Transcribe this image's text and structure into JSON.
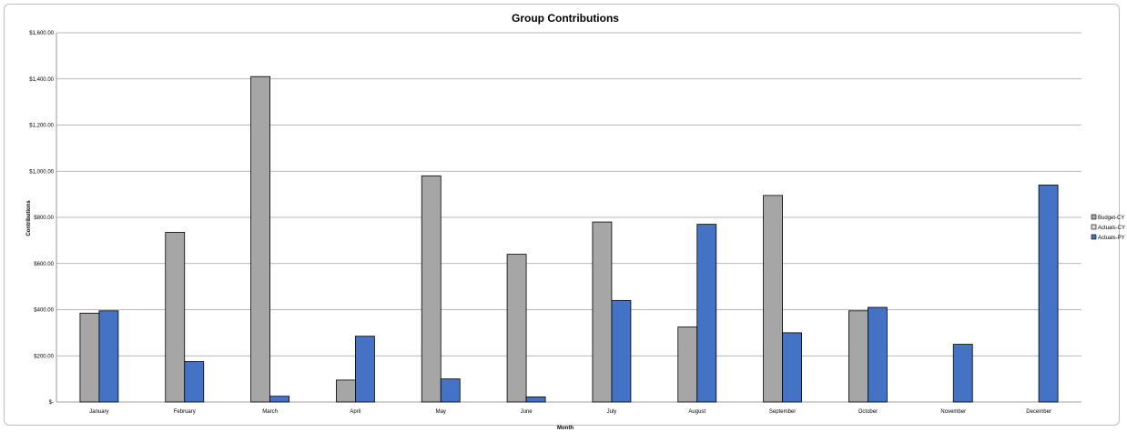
{
  "chart_data": {
    "type": "bar",
    "title": "Group Contributions",
    "xlabel": "Month",
    "ylabel": "Contributions",
    "categories": [
      "January",
      "February",
      "March",
      "April",
      "May",
      "June",
      "July",
      "August",
      "September",
      "October",
      "November",
      "December"
    ],
    "ylim": [
      0,
      1600
    ],
    "yticks": [
      0,
      200,
      400,
      600,
      800,
      1000,
      1200,
      1400,
      1600
    ],
    "ytick_labels": [
      "$-",
      "$200.00",
      "$400.00",
      "$600.00",
      "$800.00",
      "$1,000.00",
      "$1,200.00",
      "$1,400.00",
      "$1,600.00"
    ],
    "grid": true,
    "legend_position": "right",
    "series": [
      {
        "name": "Budget-CY",
        "color": "#a6a6a6",
        "values": [
          385,
          735,
          1410,
          95,
          980,
          640,
          780,
          325,
          895,
          395,
          0,
          0
        ]
      },
      {
        "name": "Actuals-CY",
        "color": "#d9d9d9",
        "values": [
          0,
          0,
          0,
          0,
          0,
          0,
          0,
          0,
          0,
          0,
          0,
          0
        ]
      },
      {
        "name": "Actuals-PY",
        "color": "#4472c4",
        "values": [
          395,
          175,
          25,
          285,
          100,
          22,
          440,
          770,
          300,
          410,
          250,
          940
        ]
      }
    ]
  }
}
